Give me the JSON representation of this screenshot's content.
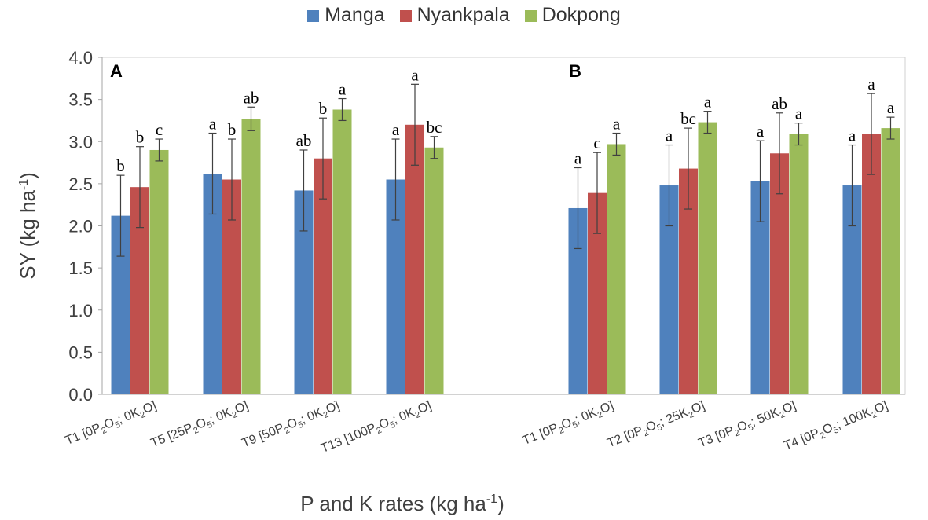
{
  "chart_data": {
    "type": "bar",
    "ylabel_main": "SY (kg ha",
    "ylabel_sup": "-1",
    "ylabel_close": ")",
    "xlabel": "P and K rates (kg ha-1)",
    "xlabel_main": "P and K rates (kg ha",
    "xlabel_sup": "-1",
    "xlabel_close": ")",
    "ylim": [
      0,
      4.0
    ],
    "yticks": [
      "0.0",
      "0.5",
      "1.0",
      "1.5",
      "2.0",
      "2.5",
      "3.0",
      "3.5",
      "4.0"
    ],
    "ytick_values": [
      0,
      0.5,
      1.0,
      1.5,
      2.0,
      2.5,
      3.0,
      3.5,
      4.0
    ],
    "legend_position": "top-center",
    "series": [
      {
        "name": "Manga",
        "color": "#4f81bd"
      },
      {
        "name": "Nyankpala",
        "color": "#c0504d"
      },
      {
        "name": "Dokpong",
        "color": "#9bbb59"
      }
    ],
    "panels": [
      {
        "label": "A",
        "groups": [
          {
            "category": "T1 [0P2O5; 0K2O]",
            "cat_parts": [
              [
                "T1 [0P",
                ""
              ],
              [
                "2",
                "sub"
              ],
              [
                "O",
                ""
              ],
              [
                "5",
                "sub"
              ],
              [
                "; 0K",
                ""
              ],
              [
                "2",
                "sub"
              ],
              [
                "O]",
                ""
              ]
            ],
            "values": [
              2.12,
              2.46,
              2.9
            ],
            "errors": [
              0.48,
              0.48,
              0.13
            ],
            "letters": [
              "b",
              "b",
              "c"
            ]
          },
          {
            "category": "T5 [25P2O5; 0K2O]",
            "cat_parts": [
              [
                "T5 [25P",
                ""
              ],
              [
                "2",
                "sub"
              ],
              [
                "O",
                ""
              ],
              [
                "5",
                "sub"
              ],
              [
                "; 0K",
                ""
              ],
              [
                "2",
                "sub"
              ],
              [
                "O]",
                ""
              ]
            ],
            "values": [
              2.62,
              2.55,
              3.27
            ],
            "errors": [
              0.48,
              0.48,
              0.14
            ],
            "letters": [
              "a",
              "b",
              "ab"
            ]
          },
          {
            "category": "T9 [50P2O5; 0K2O]",
            "cat_parts": [
              [
                "T9 [50P",
                ""
              ],
              [
                "2",
                "sub"
              ],
              [
                "O",
                ""
              ],
              [
                "5",
                "sub"
              ],
              [
                "; 0K",
                ""
              ],
              [
                "2",
                "sub"
              ],
              [
                "O]",
                ""
              ]
            ],
            "values": [
              2.42,
              2.8,
              3.38
            ],
            "errors": [
              0.48,
              0.48,
              0.13
            ],
            "letters": [
              "ab",
              "b",
              "a"
            ]
          },
          {
            "category": "T13 [100P2O5; 0K2O]",
            "cat_parts": [
              [
                "T13 [100P",
                ""
              ],
              [
                "2",
                "sub"
              ],
              [
                "O",
                ""
              ],
              [
                "5",
                "sub"
              ],
              [
                "; 0K",
                ""
              ],
              [
                "2",
                "sub"
              ],
              [
                "O]",
                ""
              ]
            ],
            "values": [
              2.55,
              3.2,
              2.93
            ],
            "errors": [
              0.48,
              0.48,
              0.13
            ],
            "letters": [
              "a",
              "a",
              "bc"
            ]
          }
        ]
      },
      {
        "label": "B",
        "groups": [
          {
            "category": "T1 [0P2O5; 0K2O]",
            "cat_parts": [
              [
                "T1 [0P",
                ""
              ],
              [
                "2",
                "sub"
              ],
              [
                "O",
                ""
              ],
              [
                "5",
                "sub"
              ],
              [
                "; 0K",
                ""
              ],
              [
                "2",
                "sub"
              ],
              [
                "O]",
                ""
              ]
            ],
            "values": [
              2.21,
              2.39,
              2.97
            ],
            "errors": [
              0.48,
              0.48,
              0.13
            ],
            "letters": [
              "a",
              "c",
              "a"
            ]
          },
          {
            "category": "T2 [0P2O5; 25K2O]",
            "cat_parts": [
              [
                "T2 [0P",
                ""
              ],
              [
                "2",
                "sub"
              ],
              [
                "O",
                ""
              ],
              [
                "5",
                "sub"
              ],
              [
                "; 25K",
                ""
              ],
              [
                "2",
                "sub"
              ],
              [
                "O]",
                ""
              ]
            ],
            "values": [
              2.48,
              2.68,
              3.23
            ],
            "errors": [
              0.48,
              0.48,
              0.13
            ],
            "letters": [
              "a",
              "bc",
              "a"
            ]
          },
          {
            "category": "T3 [0P2O5; 50K2O]",
            "cat_parts": [
              [
                "T3 [0P",
                ""
              ],
              [
                "2",
                "sub"
              ],
              [
                "O",
                ""
              ],
              [
                "5",
                "sub"
              ],
              [
                "; 50K",
                ""
              ],
              [
                "2",
                "sub"
              ],
              [
                "O]",
                ""
              ]
            ],
            "values": [
              2.53,
              2.86,
              3.09
            ],
            "errors": [
              0.48,
              0.48,
              0.13
            ],
            "letters": [
              "a",
              "ab",
              "a"
            ]
          },
          {
            "category": "T4 [0P2O5; 100K2O]",
            "cat_parts": [
              [
                "T4 [0P",
                ""
              ],
              [
                "2",
                "sub"
              ],
              [
                "O",
                ""
              ],
              [
                "5",
                "sub"
              ],
              [
                "; 100K",
                ""
              ],
              [
                "2",
                "sub"
              ],
              [
                "O]",
                ""
              ]
            ],
            "values": [
              2.48,
              3.09,
              3.16
            ],
            "errors": [
              0.48,
              0.48,
              0.13
            ],
            "letters": [
              "a",
              "a",
              "a"
            ]
          }
        ]
      }
    ]
  }
}
